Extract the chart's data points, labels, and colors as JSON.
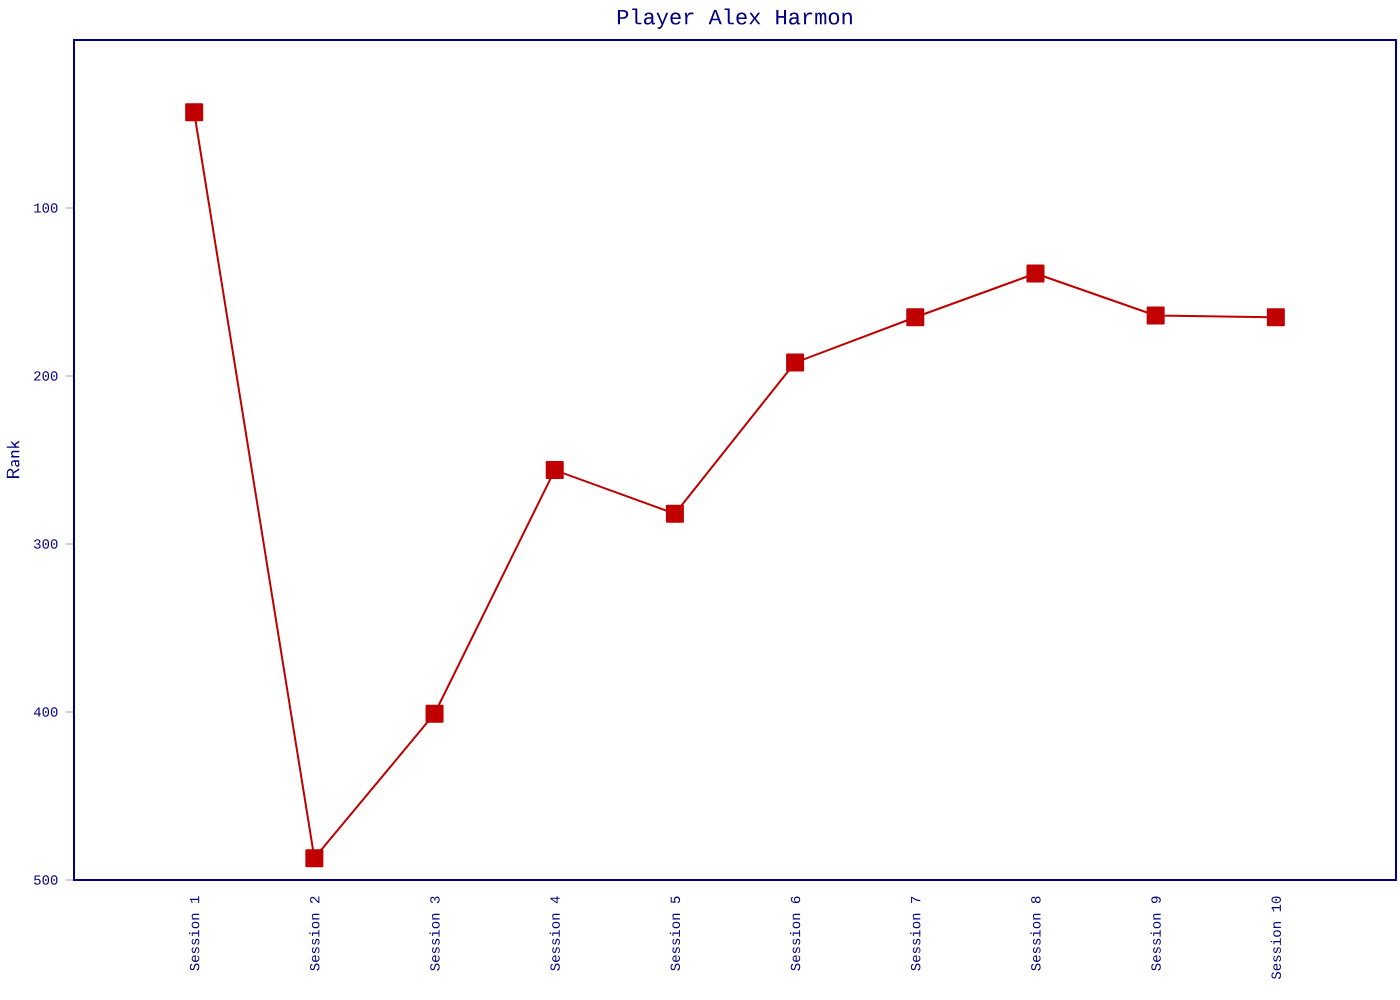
{
  "chart_data": {
    "type": "line",
    "title": "Player Alex Harmon",
    "ylabel": "Rank",
    "categories": [
      "Session 1",
      "Session 2",
      "Session 3",
      "Session 4",
      "Session 5",
      "Session 6",
      "Session 7",
      "Session 8",
      "Session 9",
      "Session 10"
    ],
    "series": [
      {
        "color": "#c00000",
        "values": [
          43,
          487,
          401,
          256,
          282,
          192,
          165,
          139,
          164,
          165
        ]
      }
    ],
    "ylim": [
      500,
      0
    ],
    "yticks": [
      100,
      200,
      300,
      400,
      500
    ],
    "marker": "square",
    "grid": false
  }
}
